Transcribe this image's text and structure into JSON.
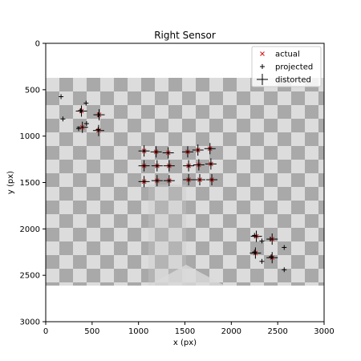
{
  "chart_data": {
    "type": "scatter",
    "title": "Right Sensor",
    "xlabel": "x (px)",
    "ylabel": "y (px)",
    "xlim": [
      0,
      3000
    ],
    "ylim": [
      3000,
      0
    ],
    "x_ticks": [
      0,
      500,
      1000,
      1500,
      2000,
      2500,
      3000
    ],
    "y_ticks": [
      0,
      500,
      1000,
      1500,
      2000,
      2500,
      3000
    ],
    "grid": false,
    "legend_position": "top-right",
    "background_image": "checkerboard calibration image spanning x 0–3000, y 370–2600",
    "series": [
      {
        "name": "actual",
        "marker": "x",
        "color": "#d62728",
        "points": [
          [
            385,
            730
          ],
          [
            575,
            770
          ],
          [
            395,
            905
          ],
          [
            570,
            940
          ],
          [
            1060,
            1160
          ],
          [
            1190,
            1170
          ],
          [
            1320,
            1180
          ],
          [
            1530,
            1170
          ],
          [
            1640,
            1150
          ],
          [
            1770,
            1135
          ],
          [
            1060,
            1320
          ],
          [
            1200,
            1320
          ],
          [
            1330,
            1320
          ],
          [
            1540,
            1320
          ],
          [
            1650,
            1310
          ],
          [
            1780,
            1300
          ],
          [
            1060,
            1490
          ],
          [
            1200,
            1480
          ],
          [
            1330,
            1480
          ],
          [
            1540,
            1470
          ],
          [
            1660,
            1470
          ],
          [
            1790,
            1470
          ],
          [
            2270,
            2080
          ],
          [
            2440,
            2110
          ],
          [
            2260,
            2260
          ],
          [
            2440,
            2310
          ]
        ]
      },
      {
        "name": "projected",
        "marker": "+",
        "color": "#000000",
        "points": [
          [
            165,
            575
          ],
          [
            435,
            645
          ],
          [
            375,
            725
          ],
          [
            565,
            770
          ],
          [
            185,
            815
          ],
          [
            440,
            865
          ],
          [
            355,
            920
          ],
          [
            565,
            930
          ],
          [
            1060,
            1160
          ],
          [
            1190,
            1170
          ],
          [
            1320,
            1180
          ],
          [
            1530,
            1170
          ],
          [
            1640,
            1150
          ],
          [
            1770,
            1135
          ],
          [
            1060,
            1320
          ],
          [
            1200,
            1320
          ],
          [
            1330,
            1320
          ],
          [
            1540,
            1320
          ],
          [
            1650,
            1310
          ],
          [
            1780,
            1300
          ],
          [
            1060,
            1490
          ],
          [
            1200,
            1480
          ],
          [
            1330,
            1480
          ],
          [
            1540,
            1470
          ],
          [
            1660,
            1470
          ],
          [
            1790,
            1470
          ],
          [
            2250,
            2070
          ],
          [
            2330,
            2130
          ],
          [
            2420,
            2110
          ],
          [
            2250,
            2250
          ],
          [
            2570,
            2200
          ],
          [
            2430,
            2300
          ],
          [
            2330,
            2350
          ],
          [
            2570,
            2440
          ]
        ]
      },
      {
        "name": "distorted",
        "marker": "+",
        "color": "#000000",
        "points": [
          [
            385,
            730
          ],
          [
            575,
            770
          ],
          [
            395,
            905
          ],
          [
            570,
            940
          ],
          [
            1060,
            1160
          ],
          [
            1190,
            1170
          ],
          [
            1320,
            1180
          ],
          [
            1530,
            1170
          ],
          [
            1640,
            1150
          ],
          [
            1770,
            1135
          ],
          [
            1060,
            1320
          ],
          [
            1200,
            1320
          ],
          [
            1330,
            1320
          ],
          [
            1540,
            1320
          ],
          [
            1650,
            1310
          ],
          [
            1780,
            1300
          ],
          [
            1060,
            1490
          ],
          [
            1200,
            1480
          ],
          [
            1330,
            1480
          ],
          [
            1540,
            1470
          ],
          [
            1660,
            1470
          ],
          [
            1790,
            1470
          ],
          [
            2270,
            2080
          ],
          [
            2440,
            2110
          ],
          [
            2260,
            2260
          ],
          [
            2440,
            2310
          ]
        ]
      }
    ]
  }
}
